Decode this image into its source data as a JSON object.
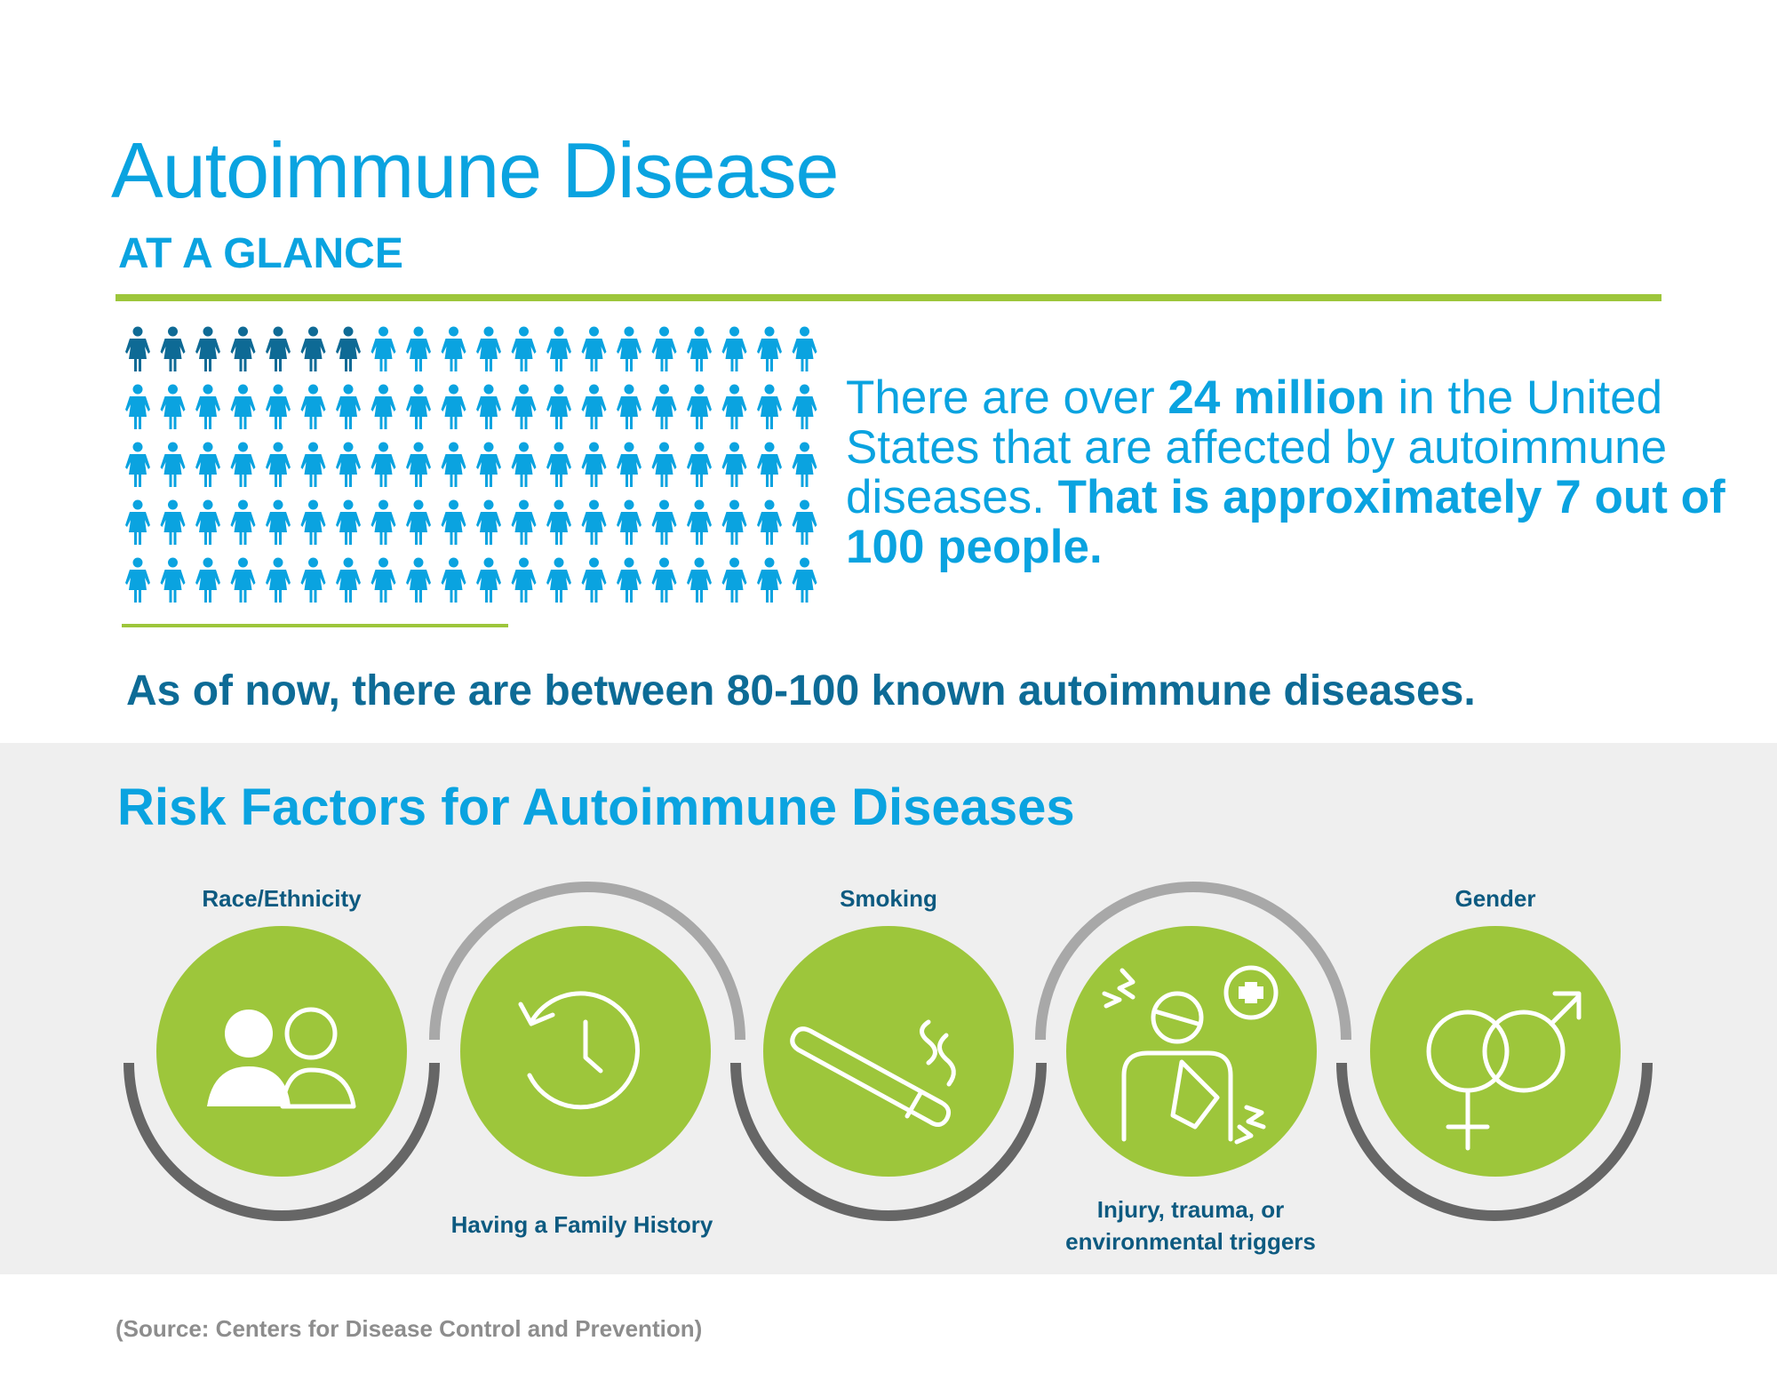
{
  "header": {
    "title": "Autoimmune Disease",
    "subtitle": "AT A GLANCE"
  },
  "stat": {
    "pre": "There are over ",
    "highlight1": "24 million",
    "mid": " in the United States that are affected by autoimmune diseases. ",
    "highlight2": "That is approximately 7 out of 100 people."
  },
  "pictogram": {
    "total": 100,
    "affected": 7,
    "columns": 20,
    "affected_color": "#0e6a95",
    "unaffected_color": "#0aa3e0"
  },
  "known": "As of now, there are between 80-100 known autoimmune diseases.",
  "risk": {
    "title": "Risk Factors for Autoimmune Diseases",
    "factors": [
      {
        "label": "Race/Ethnicity",
        "icon": "people-icon"
      },
      {
        "label": "Having a Family History",
        "icon": "history-clock-icon"
      },
      {
        "label": "Smoking",
        "icon": "cigarette-icon"
      },
      {
        "label": "Injury, trauma, or environmental triggers",
        "icon": "injured-person-icon"
      },
      {
        "label": "Gender",
        "icon": "gender-symbols-icon"
      }
    ]
  },
  "source": "(Source: Centers for Disease Control and Prevention)",
  "colors": {
    "accent_blue": "#0aa3e0",
    "dark_blue": "#0d6b96",
    "green": "#9dc63b",
    "gray_band": "#efefef"
  }
}
